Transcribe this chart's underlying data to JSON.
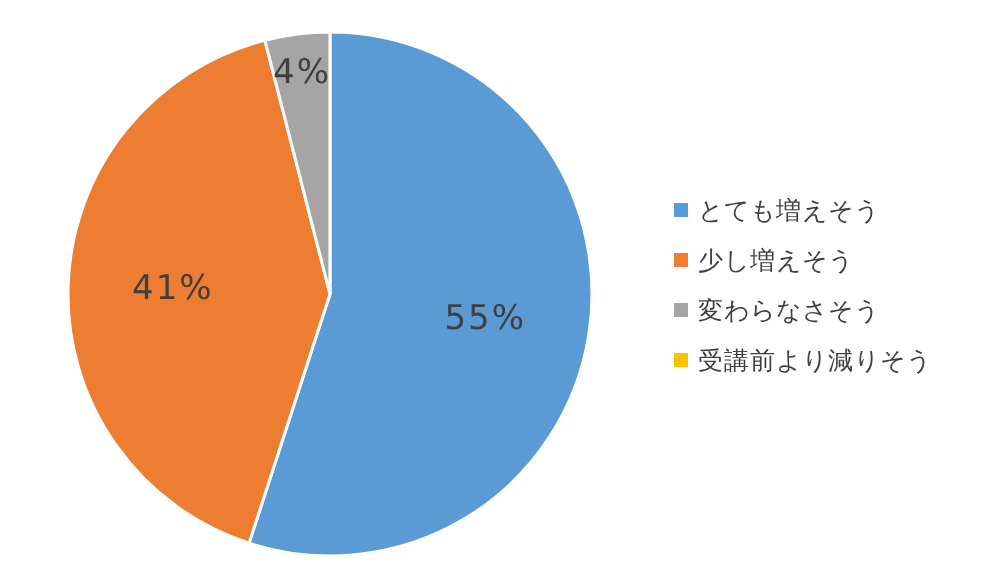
{
  "chart_data": {
    "type": "pie",
    "categories": [
      "とても増えそう",
      "少し増えそう",
      "変わらなさそう",
      "受講前より減りそう"
    ],
    "values": [
      55,
      41,
      4,
      0
    ],
    "colors": [
      "#5b9bd5",
      "#ed7d31",
      "#a5a5a5",
      "#ffc000"
    ],
    "value_labels": [
      "55%",
      "41%",
      "4%",
      null
    ],
    "legend": "right"
  }
}
